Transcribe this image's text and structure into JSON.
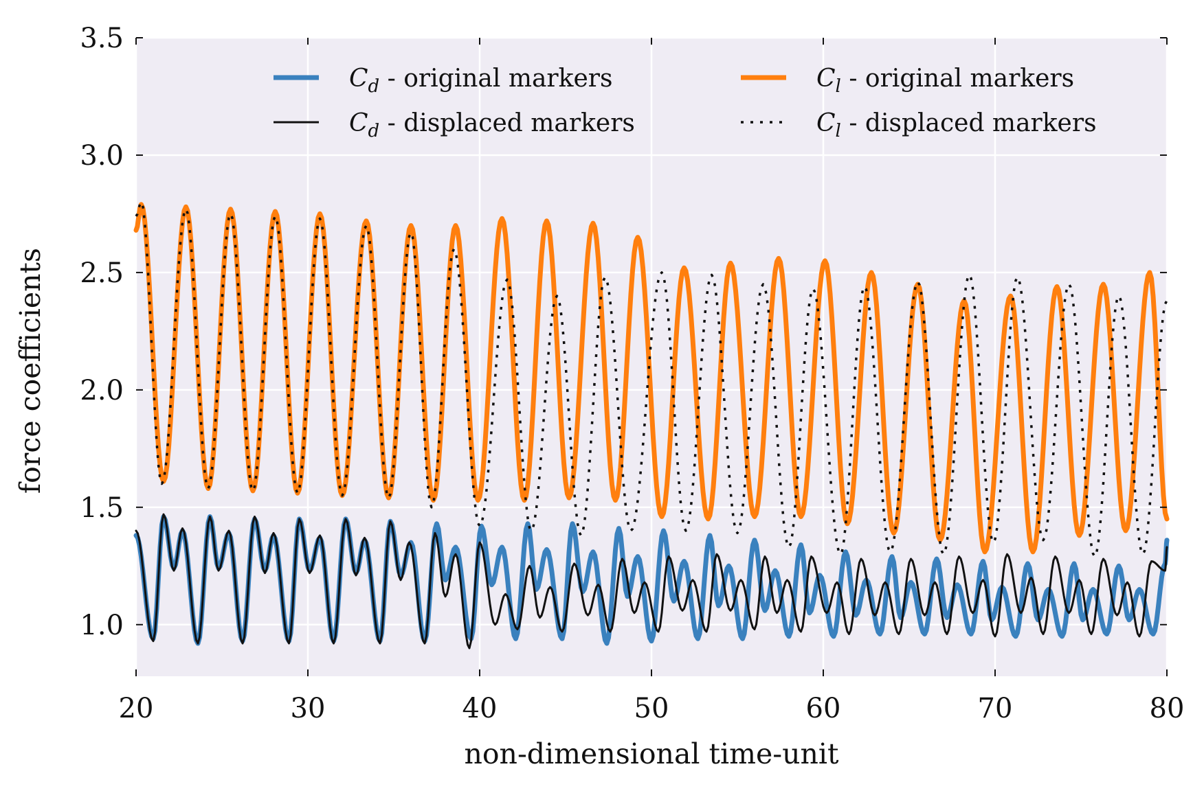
{
  "chart_data": {
    "type": "line",
    "xlabel": "non-dimensional time-unit",
    "ylabel": "force coefficients",
    "xlim": [
      20,
      80
    ],
    "ylim": [
      0.78,
      3.5
    ],
    "xticks": [
      "20",
      "30",
      "40",
      "50",
      "60",
      "70",
      "80"
    ],
    "yticks": [
      "1.0",
      "1.5",
      "2.0",
      "2.5",
      "3.0",
      "3.5"
    ],
    "grid": true,
    "legend_position": "top",
    "legend_columns": 2,
    "colors": {
      "background": "#efecf4",
      "grid": "#ffffff",
      "cd_original": "#3a81be",
      "cl_original": "#ff7f0e",
      "displaced": "#111111"
    },
    "series": [
      {
        "name": "Cd - original markers",
        "symbol": "C",
        "subscript": "d",
        "suffix": " - original markers",
        "style": "solid-thick",
        "color": "#3a81be",
        "kind": "drag",
        "start_value": 1.38,
        "period": 2.65,
        "peaks_major": [
          [
            21.6,
            1.46
          ],
          [
            24.3,
            1.46
          ],
          [
            26.9,
            1.45
          ],
          [
            29.5,
            1.45
          ],
          [
            32.2,
            1.45
          ],
          [
            34.8,
            1.44
          ],
          [
            37.5,
            1.43
          ],
          [
            40.1,
            1.42
          ],
          [
            42.8,
            1.43
          ],
          [
            45.4,
            1.43
          ],
          [
            48.1,
            1.41
          ],
          [
            50.7,
            1.4
          ],
          [
            53.4,
            1.38
          ],
          [
            56.0,
            1.36
          ],
          [
            58.7,
            1.34
          ],
          [
            61.3,
            1.31
          ],
          [
            64.0,
            1.29
          ],
          [
            66.6,
            1.28
          ],
          [
            69.3,
            1.27
          ],
          [
            71.9,
            1.26
          ],
          [
            74.6,
            1.26
          ],
          [
            77.2,
            1.25
          ],
          [
            79.9,
            1.26
          ]
        ],
        "peaks_minor": [
          [
            22.7,
            1.4
          ],
          [
            25.4,
            1.39
          ],
          [
            28.0,
            1.38
          ],
          [
            30.7,
            1.37
          ],
          [
            33.3,
            1.36
          ],
          [
            36.0,
            1.35
          ],
          [
            38.6,
            1.33
          ],
          [
            41.3,
            1.33
          ],
          [
            43.9,
            1.32
          ],
          [
            46.6,
            1.31
          ],
          [
            49.2,
            1.29
          ],
          [
            51.9,
            1.27
          ],
          [
            54.5,
            1.25
          ],
          [
            57.2,
            1.23
          ],
          [
            59.8,
            1.21
          ],
          [
            62.5,
            1.19
          ],
          [
            65.1,
            1.18
          ],
          [
            67.8,
            1.17
          ],
          [
            70.4,
            1.16
          ],
          [
            73.1,
            1.15
          ],
          [
            75.7,
            1.15
          ],
          [
            78.4,
            1.15
          ]
        ],
        "troughs_deep": [
          [
            21.0,
            0.94
          ],
          [
            23.6,
            0.92
          ],
          [
            26.2,
            0.93
          ],
          [
            28.9,
            0.93
          ],
          [
            31.5,
            0.93
          ],
          [
            34.2,
            0.93
          ],
          [
            36.8,
            0.93
          ],
          [
            39.5,
            0.94
          ],
          [
            42.1,
            0.94
          ],
          [
            44.8,
            0.94
          ],
          [
            47.4,
            0.92
          ],
          [
            50.0,
            0.93
          ],
          [
            52.7,
            0.94
          ],
          [
            55.3,
            0.94
          ],
          [
            58.0,
            0.95
          ],
          [
            60.6,
            0.95
          ],
          [
            63.3,
            0.96
          ],
          [
            65.9,
            0.96
          ],
          [
            68.6,
            0.96
          ],
          [
            71.2,
            0.95
          ],
          [
            73.9,
            0.95
          ],
          [
            76.5,
            0.96
          ],
          [
            79.2,
            0.96
          ]
        ],
        "troughs_shallow": [
          [
            22.2,
            1.24
          ],
          [
            24.8,
            1.24
          ],
          [
            27.5,
            1.23
          ],
          [
            30.1,
            1.23
          ],
          [
            32.8,
            1.22
          ],
          [
            35.4,
            1.21
          ],
          [
            38.0,
            1.19
          ],
          [
            40.7,
            1.17
          ],
          [
            43.3,
            1.15
          ],
          [
            46.0,
            1.14
          ],
          [
            48.6,
            1.12
          ],
          [
            51.3,
            1.1
          ],
          [
            53.9,
            1.08
          ],
          [
            56.6,
            1.06
          ],
          [
            59.2,
            1.05
          ],
          [
            61.9,
            1.04
          ],
          [
            64.5,
            1.03
          ],
          [
            67.2,
            1.03
          ],
          [
            69.8,
            1.02
          ],
          [
            72.5,
            1.02
          ],
          [
            75.1,
            1.02
          ],
          [
            77.8,
            1.02
          ]
        ]
      },
      {
        "name": "Cd - displaced markers",
        "symbol": "C",
        "subscript": "d",
        "suffix": " - displaced markers",
        "style": "solid-thin",
        "color": "#111111",
        "kind": "drag",
        "start_value": 1.4,
        "peaks_major": [
          [
            21.6,
            1.47
          ],
          [
            24.3,
            1.46
          ],
          [
            26.9,
            1.46
          ],
          [
            29.5,
            1.45
          ],
          [
            32.2,
            1.45
          ],
          [
            34.8,
            1.44
          ],
          [
            37.4,
            1.39
          ],
          [
            40.0,
            1.35
          ],
          [
            42.9,
            1.25
          ],
          [
            45.5,
            1.26
          ],
          [
            48.3,
            1.28
          ],
          [
            51.0,
            1.29
          ],
          [
            53.8,
            1.3
          ],
          [
            56.6,
            1.29
          ],
          [
            59.3,
            1.29
          ],
          [
            62.2,
            1.28
          ],
          [
            65.1,
            1.28
          ],
          [
            67.9,
            1.29
          ],
          [
            70.7,
            1.3
          ],
          [
            73.5,
            1.29
          ],
          [
            76.3,
            1.28
          ],
          [
            79.1,
            1.27
          ]
        ],
        "peaks_minor": [
          [
            22.7,
            1.41
          ],
          [
            25.4,
            1.4
          ],
          [
            28.0,
            1.39
          ],
          [
            30.7,
            1.38
          ],
          [
            33.3,
            1.37
          ],
          [
            35.9,
            1.35
          ],
          [
            38.6,
            1.3
          ],
          [
            41.5,
            1.13
          ],
          [
            44.1,
            1.16
          ],
          [
            46.9,
            1.17
          ],
          [
            49.6,
            1.18
          ],
          [
            52.4,
            1.19
          ],
          [
            55.2,
            1.19
          ],
          [
            57.9,
            1.19
          ],
          [
            60.8,
            1.18
          ],
          [
            63.6,
            1.18
          ],
          [
            66.5,
            1.18
          ],
          [
            69.3,
            1.19
          ],
          [
            72.1,
            1.2
          ],
          [
            74.9,
            1.19
          ],
          [
            77.7,
            1.18
          ]
        ],
        "troughs_deep": [
          [
            21.0,
            0.93
          ],
          [
            23.6,
            0.92
          ],
          [
            26.2,
            0.92
          ],
          [
            28.9,
            0.92
          ],
          [
            31.5,
            0.92
          ],
          [
            34.2,
            0.92
          ],
          [
            36.8,
            0.92
          ],
          [
            39.4,
            0.9
          ],
          [
            42.2,
            0.98
          ],
          [
            44.8,
            0.97
          ],
          [
            47.6,
            0.97
          ],
          [
            50.4,
            0.97
          ],
          [
            53.2,
            0.97
          ],
          [
            56.0,
            0.98
          ],
          [
            58.7,
            0.97
          ],
          [
            61.5,
            0.96
          ],
          [
            64.4,
            0.96
          ],
          [
            67.2,
            0.96
          ],
          [
            70.0,
            0.95
          ],
          [
            72.8,
            0.96
          ],
          [
            75.6,
            0.96
          ],
          [
            78.4,
            0.95
          ]
        ],
        "troughs_shallow": [
          [
            22.2,
            1.23
          ],
          [
            24.8,
            1.23
          ],
          [
            27.5,
            1.22
          ],
          [
            30.1,
            1.22
          ],
          [
            32.8,
            1.21
          ],
          [
            35.4,
            1.19
          ],
          [
            38.0,
            1.12
          ],
          [
            40.9,
            1.0
          ],
          [
            43.5,
            1.03
          ],
          [
            46.3,
            1.04
          ],
          [
            49.0,
            1.05
          ],
          [
            51.8,
            1.06
          ],
          [
            54.6,
            1.06
          ],
          [
            57.3,
            1.05
          ],
          [
            60.2,
            1.05
          ],
          [
            63.0,
            1.04
          ],
          [
            65.9,
            1.04
          ],
          [
            68.7,
            1.05
          ],
          [
            71.5,
            1.05
          ],
          [
            74.3,
            1.05
          ],
          [
            77.1,
            1.04
          ],
          [
            79.9,
            1.23
          ]
        ]
      },
      {
        "name": "Cl - original markers",
        "symbol": "C",
        "subscript": "l",
        "suffix": " - original markers",
        "style": "solid-thick",
        "color": "#ff7f0e",
        "kind": "lift",
        "start_value": 2.68,
        "peaks": [
          [
            20.3,
            2.79
          ],
          [
            22.9,
            2.78
          ],
          [
            25.5,
            2.77
          ],
          [
            28.1,
            2.76
          ],
          [
            30.7,
            2.75
          ],
          [
            33.4,
            2.72
          ],
          [
            36.0,
            2.7
          ],
          [
            38.6,
            2.7
          ],
          [
            41.3,
            2.73
          ],
          [
            43.9,
            2.72
          ],
          [
            46.6,
            2.71
          ],
          [
            49.2,
            2.65
          ],
          [
            51.9,
            2.52
          ],
          [
            54.6,
            2.54
          ],
          [
            57.4,
            2.56
          ],
          [
            60.1,
            2.55
          ],
          [
            62.8,
            2.5
          ],
          [
            65.5,
            2.45
          ],
          [
            68.2,
            2.38
          ],
          [
            70.9,
            2.4
          ],
          [
            73.6,
            2.44
          ],
          [
            76.3,
            2.45
          ],
          [
            79.0,
            2.5
          ]
        ],
        "troughs": [
          [
            21.6,
            1.61
          ],
          [
            24.2,
            1.58
          ],
          [
            26.8,
            1.57
          ],
          [
            29.4,
            1.56
          ],
          [
            32.0,
            1.55
          ],
          [
            34.7,
            1.54
          ],
          [
            37.3,
            1.53
          ],
          [
            39.9,
            1.53
          ],
          [
            42.6,
            1.53
          ],
          [
            45.2,
            1.54
          ],
          [
            47.9,
            1.53
          ],
          [
            50.6,
            1.46
          ],
          [
            53.3,
            1.45
          ],
          [
            56.0,
            1.46
          ],
          [
            58.7,
            1.46
          ],
          [
            61.4,
            1.43
          ],
          [
            64.1,
            1.39
          ],
          [
            66.8,
            1.36
          ],
          [
            69.4,
            1.31
          ],
          [
            72.2,
            1.31
          ],
          [
            74.9,
            1.38
          ],
          [
            77.6,
            1.4
          ],
          [
            80.0,
            1.45
          ]
        ]
      },
      {
        "name": "Cl - displaced markers",
        "symbol": "C",
        "subscript": "l",
        "suffix": " - displaced markers",
        "style": "dotted",
        "color": "#111111",
        "kind": "lift",
        "start_value": 2.74,
        "peaks": [
          [
            20.3,
            2.8
          ],
          [
            22.9,
            2.77
          ],
          [
            25.5,
            2.75
          ],
          [
            28.1,
            2.74
          ],
          [
            30.7,
            2.73
          ],
          [
            33.4,
            2.7
          ],
          [
            36.0,
            2.67
          ],
          [
            38.5,
            2.6
          ],
          [
            41.6,
            2.47
          ],
          [
            44.5,
            2.4
          ],
          [
            47.3,
            2.48
          ],
          [
            50.6,
            2.5
          ],
          [
            53.5,
            2.49
          ],
          [
            56.5,
            2.45
          ],
          [
            59.4,
            2.43
          ],
          [
            62.4,
            2.44
          ],
          [
            65.5,
            2.46
          ],
          [
            68.5,
            2.49
          ],
          [
            71.3,
            2.48
          ],
          [
            74.3,
            2.45
          ],
          [
            77.2,
            2.4
          ],
          [
            80.0,
            2.38
          ]
        ],
        "troughs": [
          [
            21.5,
            1.6
          ],
          [
            24.2,
            1.58
          ],
          [
            26.8,
            1.57
          ],
          [
            29.4,
            1.56
          ],
          [
            32.0,
            1.55
          ],
          [
            34.7,
            1.54
          ],
          [
            37.2,
            1.5
          ],
          [
            40.0,
            1.42
          ],
          [
            43.0,
            1.4
          ],
          [
            45.9,
            1.38
          ],
          [
            48.8,
            1.4
          ],
          [
            52.0,
            1.4
          ],
          [
            55.0,
            1.39
          ],
          [
            58.0,
            1.33
          ],
          [
            61.0,
            1.3
          ],
          [
            63.9,
            1.31
          ],
          [
            67.0,
            1.3
          ],
          [
            69.9,
            1.35
          ],
          [
            72.8,
            1.36
          ],
          [
            75.8,
            1.29
          ],
          [
            78.6,
            1.3
          ]
        ]
      }
    ]
  }
}
